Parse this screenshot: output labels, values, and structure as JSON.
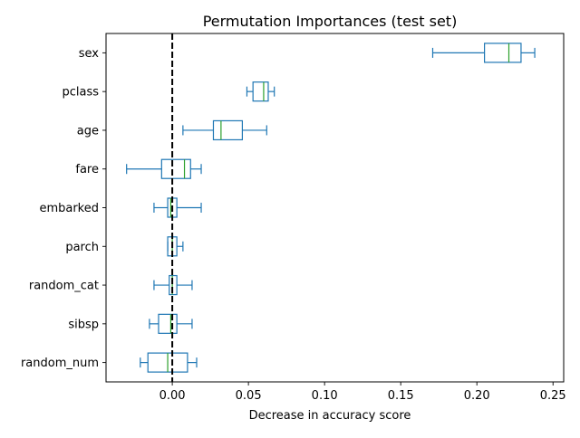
{
  "chart_data": {
    "type": "boxplot",
    "orientation": "horizontal",
    "title": "Permutation Importances (test set)",
    "xlabel": "Decrease in accuracy score",
    "ylabel": "",
    "xlim": [
      -0.0435,
      0.257
    ],
    "xticks": [
      0.0,
      0.05,
      0.1,
      0.15,
      0.2,
      0.25
    ],
    "xtick_labels": [
      "0.00",
      "0.05",
      "0.10",
      "0.15",
      "0.20",
      "0.25"
    ],
    "reference_line": {
      "x": 0,
      "style": "dashed",
      "color": "#000000"
    },
    "grid": false,
    "colors": {
      "box": "#1f77b4",
      "median": "#2ca02c"
    },
    "categories": [
      "sex",
      "pclass",
      "age",
      "fare",
      "embarked",
      "parch",
      "random_cat",
      "sibsp",
      "random_num"
    ],
    "boxes": [
      {
        "label": "sex",
        "whisker_low": 0.171,
        "q1": 0.205,
        "median": 0.221,
        "q3": 0.229,
        "whisker_high": 0.238
      },
      {
        "label": "pclass",
        "whisker_low": 0.049,
        "q1": 0.053,
        "median": 0.06,
        "q3": 0.063,
        "whisker_high": 0.067
      },
      {
        "label": "age",
        "whisker_low": 0.007,
        "q1": 0.027,
        "median": 0.032,
        "q3": 0.046,
        "whisker_high": 0.062
      },
      {
        "label": "fare",
        "whisker_low": -0.03,
        "q1": -0.007,
        "median": 0.008,
        "q3": 0.012,
        "whisker_high": 0.019
      },
      {
        "label": "embarked",
        "whisker_low": -0.012,
        "q1": -0.003,
        "median": -0.001,
        "q3": 0.003,
        "whisker_high": 0.019
      },
      {
        "label": "parch",
        "whisker_low": -0.003,
        "q1": -0.003,
        "median": 0.0,
        "q3": 0.003,
        "whisker_high": 0.007
      },
      {
        "label": "random_cat",
        "whisker_low": -0.012,
        "q1": -0.002,
        "median": 0.0,
        "q3": 0.003,
        "whisker_high": 0.013
      },
      {
        "label": "sibsp",
        "whisker_low": -0.015,
        "q1": -0.009,
        "median": -0.001,
        "q3": 0.003,
        "whisker_high": 0.013
      },
      {
        "label": "random_num",
        "whisker_low": -0.021,
        "q1": -0.016,
        "median": -0.003,
        "q3": 0.01,
        "whisker_high": 0.016
      }
    ]
  }
}
